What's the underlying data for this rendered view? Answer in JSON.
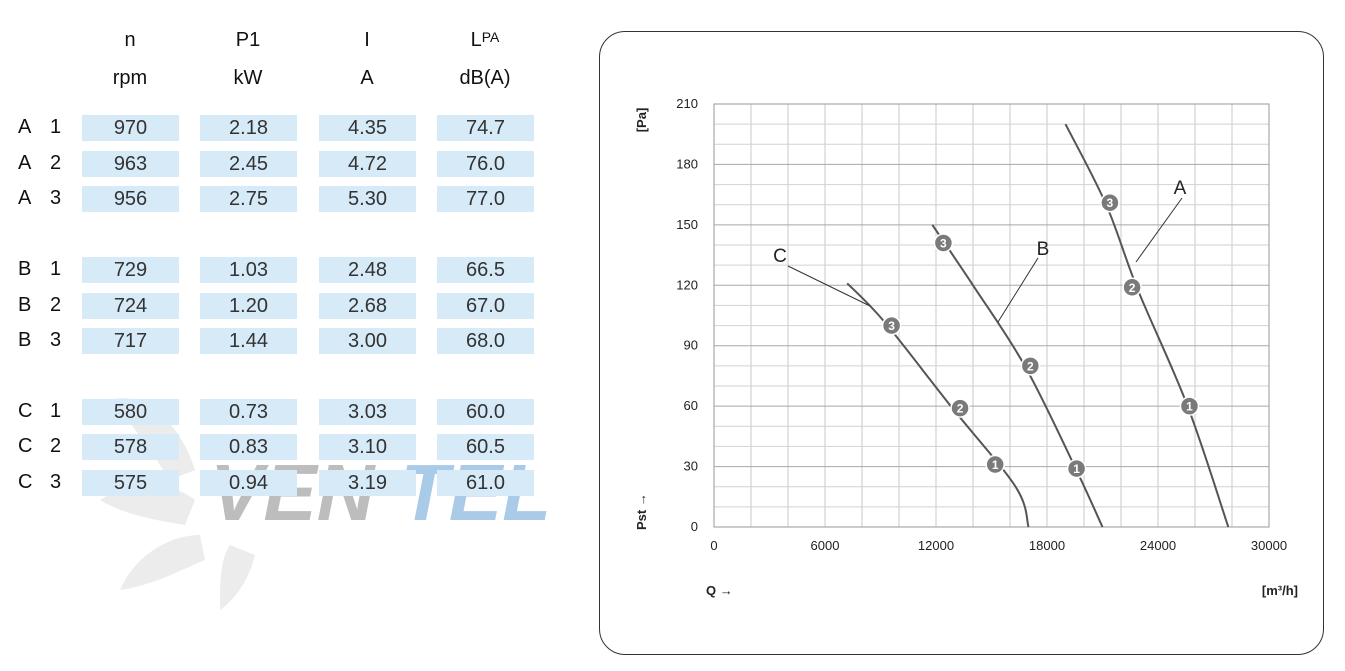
{
  "table": {
    "headers": [
      {
        "top": "n",
        "unit": "rpm"
      },
      {
        "top": "P1",
        "unit": "kW"
      },
      {
        "top": "I",
        "unit": "A"
      },
      {
        "top": "L",
        "sub": "PA",
        "unit": "dB(A)"
      }
    ],
    "rows": [
      {
        "group": "A",
        "step": "1",
        "values": [
          "970",
          "2.18",
          "4.35",
          "74.7"
        ]
      },
      {
        "group": "A",
        "step": "2",
        "values": [
          "963",
          "2.45",
          "4.72",
          "76.0"
        ]
      },
      {
        "group": "A",
        "step": "3",
        "values": [
          "956",
          "2.75",
          "5.30",
          "77.0"
        ]
      },
      {
        "group": "B",
        "step": "1",
        "values": [
          "729",
          "1.03",
          "2.48",
          "66.5"
        ]
      },
      {
        "group": "B",
        "step": "2",
        "values": [
          "724",
          "1.20",
          "2.68",
          "67.0"
        ]
      },
      {
        "group": "B",
        "step": "3",
        "values": [
          "717",
          "1.44",
          "3.00",
          "68.0"
        ]
      },
      {
        "group": "C",
        "step": "1",
        "values": [
          "580",
          "0.73",
          "3.03",
          "60.0"
        ]
      },
      {
        "group": "C",
        "step": "2",
        "values": [
          "578",
          "0.83",
          "3.10",
          "60.5"
        ]
      },
      {
        "group": "C",
        "step": "3",
        "values": [
          "575",
          "0.94",
          "3.19",
          "61.0"
        ]
      }
    ]
  },
  "watermark": {
    "text": "VenTEL",
    "colors": {
      "dark": "#b8b8b8",
      "blue": "#a9cbe8"
    }
  },
  "chart_data": {
    "type": "line",
    "x_label": "Q →",
    "x_unit": "[m³/h]",
    "y_label": "Pst →",
    "y_unit": "[Pa]",
    "xlim": [
      0,
      30000
    ],
    "ylim": [
      0,
      210
    ],
    "x_ticks": [
      0,
      6000,
      12000,
      18000,
      24000,
      30000
    ],
    "y_ticks": [
      0,
      30,
      60,
      90,
      120,
      150,
      180,
      210
    ],
    "grid": true,
    "series": [
      {
        "name": "A",
        "points": [
          [
            19000,
            200
          ],
          [
            21200,
            160
          ],
          [
            22900,
            118
          ],
          [
            25600,
            60
          ],
          [
            27800,
            0
          ]
        ],
        "markers": [
          {
            "label": "1",
            "x": 25700,
            "y": 60
          },
          {
            "label": "2",
            "x": 22600,
            "y": 119
          },
          {
            "label": "3",
            "x": 21400,
            "y": 161
          }
        ]
      },
      {
        "name": "B",
        "points": [
          [
            11800,
            150
          ],
          [
            14000,
            120
          ],
          [
            16800,
            80
          ],
          [
            19500,
            30
          ],
          [
            21000,
            0
          ]
        ],
        "markers": [
          {
            "label": "1",
            "x": 19600,
            "y": 29
          },
          {
            "label": "2",
            "x": 17100,
            "y": 80
          },
          {
            "label": "3",
            "x": 12400,
            "y": 141
          }
        ]
      },
      {
        "name": "C",
        "points": [
          [
            7200,
            121
          ],
          [
            9200,
            102
          ],
          [
            12800,
            60
          ],
          [
            16300,
            20
          ],
          [
            17000,
            0
          ]
        ],
        "markers": [
          {
            "label": "1",
            "x": 15200,
            "y": 31
          },
          {
            "label": "2",
            "x": 13300,
            "y": 59
          },
          {
            "label": "3",
            "x": 9600,
            "y": 100
          }
        ]
      }
    ]
  }
}
